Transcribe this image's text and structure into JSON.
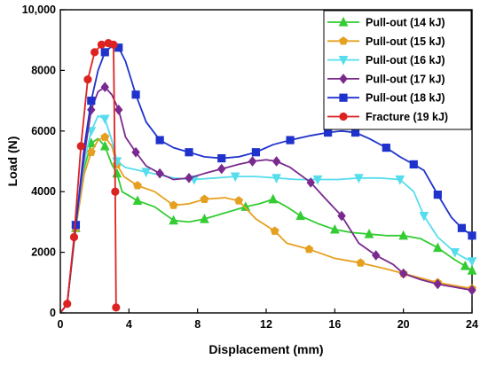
{
  "chart_data": {
    "type": "line",
    "title": "",
    "xlabel": "Displacement (mm)",
    "ylabel": "Load (N)",
    "xlim": [
      0,
      24
    ],
    "ylim": [
      0,
      10000
    ],
    "xticks": [
      0,
      4,
      8,
      12,
      16,
      20,
      24
    ],
    "xtick_labels": [
      "0",
      "4",
      "8",
      "12",
      "16",
      "20",
      "24"
    ],
    "yticks": [
      0,
      2000,
      4000,
      6000,
      8000,
      10000
    ],
    "ytick_labels": [
      "0",
      "2000",
      "4000",
      "6000",
      "8000",
      "10,000"
    ],
    "grid": false,
    "legend_position": "top-right",
    "series": [
      {
        "name": "Pull-out (14 kJ)",
        "color": "#33cc33",
        "marker": "triangle-up",
        "points": [
          [
            0,
            0
          ],
          [
            0.4,
            300
          ],
          [
            0.9,
            2800
          ],
          [
            1.4,
            4800
          ],
          [
            1.8,
            5600
          ],
          [
            2.2,
            5750
          ],
          [
            2.6,
            5500
          ],
          [
            3.0,
            4900
          ],
          [
            3.3,
            4600
          ],
          [
            3.6,
            4000
          ],
          [
            4.5,
            3700
          ],
          [
            5.5,
            3500
          ],
          [
            6.6,
            3050
          ],
          [
            7.5,
            3000
          ],
          [
            8.4,
            3100
          ],
          [
            9.6,
            3300
          ],
          [
            10.8,
            3500
          ],
          [
            11.6,
            3600
          ],
          [
            12.4,
            3750
          ],
          [
            13.2,
            3500
          ],
          [
            14.0,
            3200
          ],
          [
            15.0,
            2950
          ],
          [
            16.0,
            2750
          ],
          [
            17.0,
            2650
          ],
          [
            18.0,
            2600
          ],
          [
            19.0,
            2550
          ],
          [
            20.0,
            2550
          ],
          [
            21.0,
            2450
          ],
          [
            22.0,
            2150
          ],
          [
            23.0,
            1750
          ],
          [
            23.6,
            1550
          ],
          [
            24.0,
            1400
          ]
        ]
      },
      {
        "name": "Pull-out (15 kJ)",
        "color": "#e6a020",
        "marker": "pentagon",
        "points": [
          [
            0,
            0
          ],
          [
            0.4,
            300
          ],
          [
            0.9,
            2800
          ],
          [
            1.4,
            4600
          ],
          [
            1.8,
            5300
          ],
          [
            2.2,
            5700
          ],
          [
            2.6,
            5800
          ],
          [
            3.0,
            5500
          ],
          [
            3.3,
            4900
          ],
          [
            3.7,
            4500
          ],
          [
            4.5,
            4200
          ],
          [
            5.5,
            4000
          ],
          [
            6.6,
            3550
          ],
          [
            7.5,
            3600
          ],
          [
            8.4,
            3750
          ],
          [
            9.6,
            3800
          ],
          [
            10.4,
            3700
          ],
          [
            11.4,
            3100
          ],
          [
            12.5,
            2700
          ],
          [
            13.2,
            2300
          ],
          [
            14.5,
            2100
          ],
          [
            16.0,
            1800
          ],
          [
            17.5,
            1650
          ],
          [
            19.0,
            1450
          ],
          [
            20.0,
            1300
          ],
          [
            21.0,
            1150
          ],
          [
            22.0,
            1000
          ],
          [
            23.0,
            900
          ],
          [
            24.0,
            800
          ]
        ]
      },
      {
        "name": "Pull-out (16 kJ)",
        "color": "#55ddee",
        "marker": "triangle-down",
        "points": [
          [
            0,
            0
          ],
          [
            0.4,
            300
          ],
          [
            0.9,
            2900
          ],
          [
            1.4,
            5000
          ],
          [
            1.8,
            6000
          ],
          [
            2.2,
            6500
          ],
          [
            2.6,
            6400
          ],
          [
            3.0,
            5700
          ],
          [
            3.3,
            5000
          ],
          [
            3.8,
            4800
          ],
          [
            5.0,
            4650
          ],
          [
            6.6,
            4450
          ],
          [
            7.8,
            4400
          ],
          [
            9.0,
            4450
          ],
          [
            10.2,
            4500
          ],
          [
            11.4,
            4500
          ],
          [
            12.6,
            4450
          ],
          [
            13.8,
            4400
          ],
          [
            15.0,
            4400
          ],
          [
            16.2,
            4400
          ],
          [
            17.4,
            4450
          ],
          [
            18.6,
            4450
          ],
          [
            19.8,
            4400
          ],
          [
            20.6,
            4000
          ],
          [
            21.2,
            3200
          ],
          [
            22.0,
            2500
          ],
          [
            23.0,
            2000
          ],
          [
            23.6,
            1800
          ],
          [
            24.0,
            1700
          ]
        ]
      },
      {
        "name": "Pull-out (17 kJ)",
        "color": "#7a2a8e",
        "marker": "diamond",
        "points": [
          [
            0,
            0
          ],
          [
            0.4,
            300
          ],
          [
            0.9,
            2900
          ],
          [
            1.4,
            5200
          ],
          [
            1.8,
            6700
          ],
          [
            2.2,
            7300
          ],
          [
            2.6,
            7450
          ],
          [
            3.0,
            7200
          ],
          [
            3.4,
            6700
          ],
          [
            3.8,
            5800
          ],
          [
            4.4,
            5300
          ],
          [
            5.0,
            4850
          ],
          [
            5.8,
            4600
          ],
          [
            6.6,
            4400
          ],
          [
            7.5,
            4450
          ],
          [
            8.4,
            4600
          ],
          [
            9.4,
            4750
          ],
          [
            10.4,
            4900
          ],
          [
            11.2,
            5000
          ],
          [
            12.0,
            5050
          ],
          [
            12.6,
            5000
          ],
          [
            13.4,
            4800
          ],
          [
            14.6,
            4300
          ],
          [
            15.4,
            3800
          ],
          [
            16.4,
            3200
          ],
          [
            17.4,
            2300
          ],
          [
            18.4,
            1900
          ],
          [
            19.4,
            1600
          ],
          [
            20.0,
            1300
          ],
          [
            21.0,
            1100
          ],
          [
            22.0,
            950
          ],
          [
            23.0,
            850
          ],
          [
            24.0,
            750
          ]
        ]
      },
      {
        "name": "Pull-out (18 kJ)",
        "color": "#1f33cc",
        "marker": "square",
        "points": [
          [
            0,
            0
          ],
          [
            0.4,
            300
          ],
          [
            0.9,
            2900
          ],
          [
            1.4,
            5500
          ],
          [
            1.8,
            7000
          ],
          [
            2.2,
            8000
          ],
          [
            2.6,
            8600
          ],
          [
            3.0,
            8800
          ],
          [
            3.4,
            8750
          ],
          [
            3.8,
            8300
          ],
          [
            4.4,
            7200
          ],
          [
            5.0,
            6300
          ],
          [
            5.8,
            5700
          ],
          [
            6.6,
            5450
          ],
          [
            7.5,
            5300
          ],
          [
            8.4,
            5150
          ],
          [
            9.4,
            5100
          ],
          [
            10.4,
            5150
          ],
          [
            11.4,
            5300
          ],
          [
            12.4,
            5550
          ],
          [
            13.4,
            5700
          ],
          [
            14.6,
            5850
          ],
          [
            15.6,
            5950
          ],
          [
            16.4,
            6000
          ],
          [
            17.2,
            5950
          ],
          [
            18.0,
            5750
          ],
          [
            19.0,
            5450
          ],
          [
            19.8,
            5150
          ],
          [
            20.6,
            4900
          ],
          [
            21.2,
            4700
          ],
          [
            22.0,
            3900
          ],
          [
            22.8,
            3150
          ],
          [
            23.4,
            2800
          ],
          [
            24.0,
            2550
          ]
        ]
      },
      {
        "name": "Fracture (19 kJ)",
        "color": "#dd2222",
        "marker": "circle",
        "points": [
          [
            0,
            0
          ],
          [
            0.4,
            300
          ],
          [
            0.8,
            2500
          ],
          [
            1.2,
            5500
          ],
          [
            1.6,
            7700
          ],
          [
            2.0,
            8600
          ],
          [
            2.4,
            8850
          ],
          [
            2.8,
            8900
          ],
          [
            3.1,
            8850
          ],
          [
            3.2,
            4000
          ],
          [
            3.25,
            180
          ]
        ]
      }
    ]
  }
}
